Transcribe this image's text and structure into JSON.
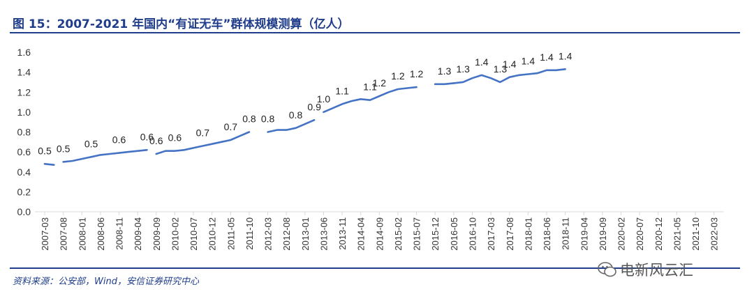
{
  "header": {
    "title": "图 15：2007-2021 年国内“有证无车”群体规模测算（亿人）"
  },
  "footer": {
    "source": "资料来源：公安部，Wind，安信证券研究中心"
  },
  "watermark": {
    "text": "电新风云汇",
    "icon": "wechat-icon"
  },
  "colors": {
    "accent": "#1f3d8a",
    "line": "#4472c4",
    "axis": "#d9d9d9"
  },
  "chart_data": {
    "type": "line",
    "title": "",
    "xlabel": "",
    "ylabel": "",
    "ylim": [
      0,
      1.6
    ],
    "yticks": [
      "0.0",
      "0.2",
      "0.4",
      "0.6",
      "0.8",
      "1.0",
      "1.2",
      "1.4",
      "1.6"
    ],
    "grid": false,
    "x": [
      "2007-03",
      "2007-08",
      "2008-01",
      "2008-06",
      "2008-11",
      "2009-04",
      "2009-09",
      "2010-02",
      "2010-07",
      "2010-12",
      "2011-05",
      "2011-10",
      "2012-03",
      "2012-08",
      "2013-01",
      "2013-06",
      "2013-11",
      "2014-04",
      "2014-09",
      "2015-02",
      "2015-07",
      "2015-12",
      "2016-05",
      "2016-10",
      "2017-03",
      "2017-08",
      "2018-01",
      "2018-06",
      "2018-11",
      "2019-04",
      "2019-09",
      "2020-02",
      "2020-07",
      "2020-12",
      "2021-05",
      "2021-10",
      "2022-03"
    ],
    "series": [
      {
        "segments": [
          [
            [
              0.0,
              0.48
            ],
            [
              0.5,
              0.47
            ]
          ],
          [
            [
              1.0,
              0.5
            ],
            [
              1.5,
              0.51
            ],
            [
              2.0,
              0.53
            ],
            [
              2.5,
              0.55
            ],
            [
              3.0,
              0.57
            ],
            [
              3.5,
              0.58
            ],
            [
              4.0,
              0.59
            ],
            [
              4.5,
              0.6
            ],
            [
              5.0,
              0.61
            ],
            [
              5.5,
              0.62
            ]
          ],
          [
            [
              6.0,
              0.58
            ],
            [
              6.5,
              0.61
            ],
            [
              7.0,
              0.61
            ],
            [
              7.5,
              0.62
            ],
            [
              8.0,
              0.64
            ],
            [
              8.5,
              0.66
            ],
            [
              9.0,
              0.68
            ],
            [
              9.5,
              0.7
            ],
            [
              10.0,
              0.72
            ],
            [
              10.5,
              0.76
            ],
            [
              11.0,
              0.8
            ]
          ],
          [
            [
              12.0,
              0.8
            ],
            [
              12.5,
              0.82
            ],
            [
              13.0,
              0.82
            ],
            [
              13.5,
              0.84
            ],
            [
              14.0,
              0.88
            ],
            [
              14.5,
              0.92
            ]
          ],
          [
            [
              15.0,
              1.0
            ],
            [
              15.5,
              1.04
            ],
            [
              16.0,
              1.08
            ],
            [
              16.5,
              1.11
            ],
            [
              17.0,
              1.13
            ],
            [
              17.5,
              1.12
            ],
            [
              18.0,
              1.16
            ],
            [
              18.5,
              1.2
            ],
            [
              19.0,
              1.23
            ],
            [
              19.5,
              1.24
            ],
            [
              20.0,
              1.25
            ]
          ],
          [
            [
              21.0,
              1.28
            ],
            [
              21.5,
              1.28
            ],
            [
              22.0,
              1.29
            ],
            [
              22.5,
              1.3
            ],
            [
              23.0,
              1.34
            ],
            [
              23.5,
              1.37
            ],
            [
              24.0,
              1.34
            ],
            [
              24.5,
              1.3
            ],
            [
              25.0,
              1.35
            ],
            [
              25.5,
              1.37
            ],
            [
              26.0,
              1.38
            ],
            [
              26.5,
              1.39
            ],
            [
              27.0,
              1.42
            ],
            [
              27.5,
              1.42
            ],
            [
              28.0,
              1.43
            ]
          ]
        ],
        "labels": [
          {
            "x": 0.0,
            "y": 0.48,
            "text": "0.5"
          },
          {
            "x": 1.0,
            "y": 0.5,
            "text": "0.5"
          },
          {
            "x": 2.5,
            "y": 0.55,
            "text": "0.5"
          },
          {
            "x": 4.0,
            "y": 0.59,
            "text": "0.6"
          },
          {
            "x": 5.5,
            "y": 0.62,
            "text": "0.6"
          },
          {
            "x": 6.0,
            "y": 0.58,
            "text": "0.6"
          },
          {
            "x": 7.0,
            "y": 0.61,
            "text": "0.6"
          },
          {
            "x": 8.5,
            "y": 0.66,
            "text": "0.7"
          },
          {
            "x": 10.0,
            "y": 0.72,
            "text": "0.7"
          },
          {
            "x": 11.0,
            "y": 0.8,
            "text": "0.8"
          },
          {
            "x": 12.0,
            "y": 0.8,
            "text": "0.8"
          },
          {
            "x": 13.5,
            "y": 0.84,
            "text": "0.8"
          },
          {
            "x": 14.5,
            "y": 0.92,
            "text": "0.9"
          },
          {
            "x": 15.0,
            "y": 1.0,
            "text": "1.0"
          },
          {
            "x": 16.0,
            "y": 1.08,
            "text": "1.1"
          },
          {
            "x": 17.5,
            "y": 1.12,
            "text": "1.1"
          },
          {
            "x": 18.0,
            "y": 1.16,
            "text": "1.2"
          },
          {
            "x": 19.0,
            "y": 1.23,
            "text": "1.2"
          },
          {
            "x": 20.0,
            "y": 1.25,
            "text": "1.2"
          },
          {
            "x": 21.5,
            "y": 1.28,
            "text": "1.3"
          },
          {
            "x": 22.5,
            "y": 1.3,
            "text": "1.3"
          },
          {
            "x": 23.5,
            "y": 1.37,
            "text": "1.4"
          },
          {
            "x": 24.5,
            "y": 1.3,
            "text": "1.3"
          },
          {
            "x": 25.0,
            "y": 1.35,
            "text": "1.4"
          },
          {
            "x": 26.0,
            "y": 1.38,
            "text": "1.4"
          },
          {
            "x": 27.0,
            "y": 1.42,
            "text": "1.4"
          },
          {
            "x": 28.0,
            "y": 1.43,
            "text": "1.4"
          }
        ]
      }
    ]
  }
}
